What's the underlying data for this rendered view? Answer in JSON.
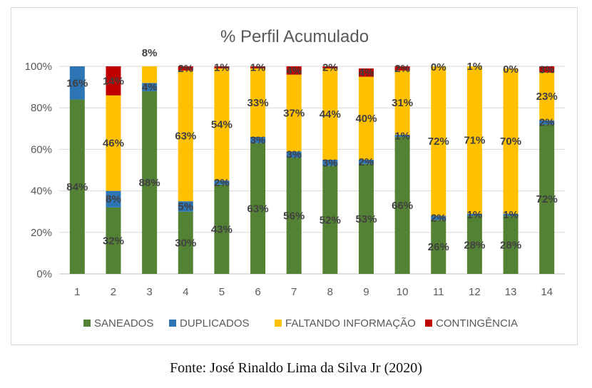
{
  "chart_data": {
    "type": "bar",
    "stacked": true,
    "title": "% Perfil Acumulado",
    "categories": [
      "1",
      "2",
      "3",
      "4",
      "5",
      "6",
      "7",
      "8",
      "9",
      "10",
      "11",
      "12",
      "13",
      "14"
    ],
    "y_ticks": [
      "0%",
      "20%",
      "40%",
      "60%",
      "80%",
      "100%"
    ],
    "ylim": [
      0,
      100
    ],
    "legend_position": "bottom",
    "series": [
      {
        "name": "SANEADOS",
        "color": "#548235",
        "values": [
          84,
          32,
          88,
          30,
          43,
          63,
          56,
          52,
          53,
          66,
          26,
          28,
          28,
          72
        ],
        "labels": [
          "84%",
          "32%",
          "88%",
          "30%",
          "43%",
          "63%",
          "56%",
          "52%",
          "53%",
          "66%",
          "26%",
          "28%",
          "28%",
          "72%"
        ]
      },
      {
        "name": "DUPLICADOS",
        "color": "#2E75B6",
        "values": [
          16,
          8,
          4,
          5,
          2,
          3,
          3,
          3,
          2,
          1,
          2,
          1,
          1,
          2
        ],
        "labels": [
          "16%",
          "8%",
          "4%",
          "5%",
          "2%",
          "3%",
          "3%",
          "3%",
          "2%",
          "1%",
          "2%",
          "1%",
          "1%",
          "2%"
        ]
      },
      {
        "name": "FALTANDO INFORMAÇÃO",
        "color": "#FFC000",
        "values": [
          0,
          46,
          8,
          63,
          54,
          33,
          37,
          44,
          40,
          31,
          72,
          71,
          70,
          23
        ],
        "labels": [
          "",
          "46%",
          "8%",
          "63%",
          "54%",
          "33%",
          "37%",
          "44%",
          "40%",
          "31%",
          "72%",
          "71%",
          "70%",
          "23%"
        ]
      },
      {
        "name": "CONTINGÊNCIA",
        "color": "#C00000",
        "values": [
          0,
          14,
          0,
          2,
          1,
          1,
          4,
          2,
          4,
          2,
          0,
          1,
          0,
          3
        ],
        "labels": [
          "",
          "14%",
          "",
          "2%",
          "1%",
          "1%",
          "4%",
          "2%",
          "4%",
          "2%",
          "0%",
          "1%",
          "0%",
          "3%"
        ]
      }
    ]
  },
  "caption": "Fonte: José Rinaldo Lima da Silva Jr (2020)"
}
